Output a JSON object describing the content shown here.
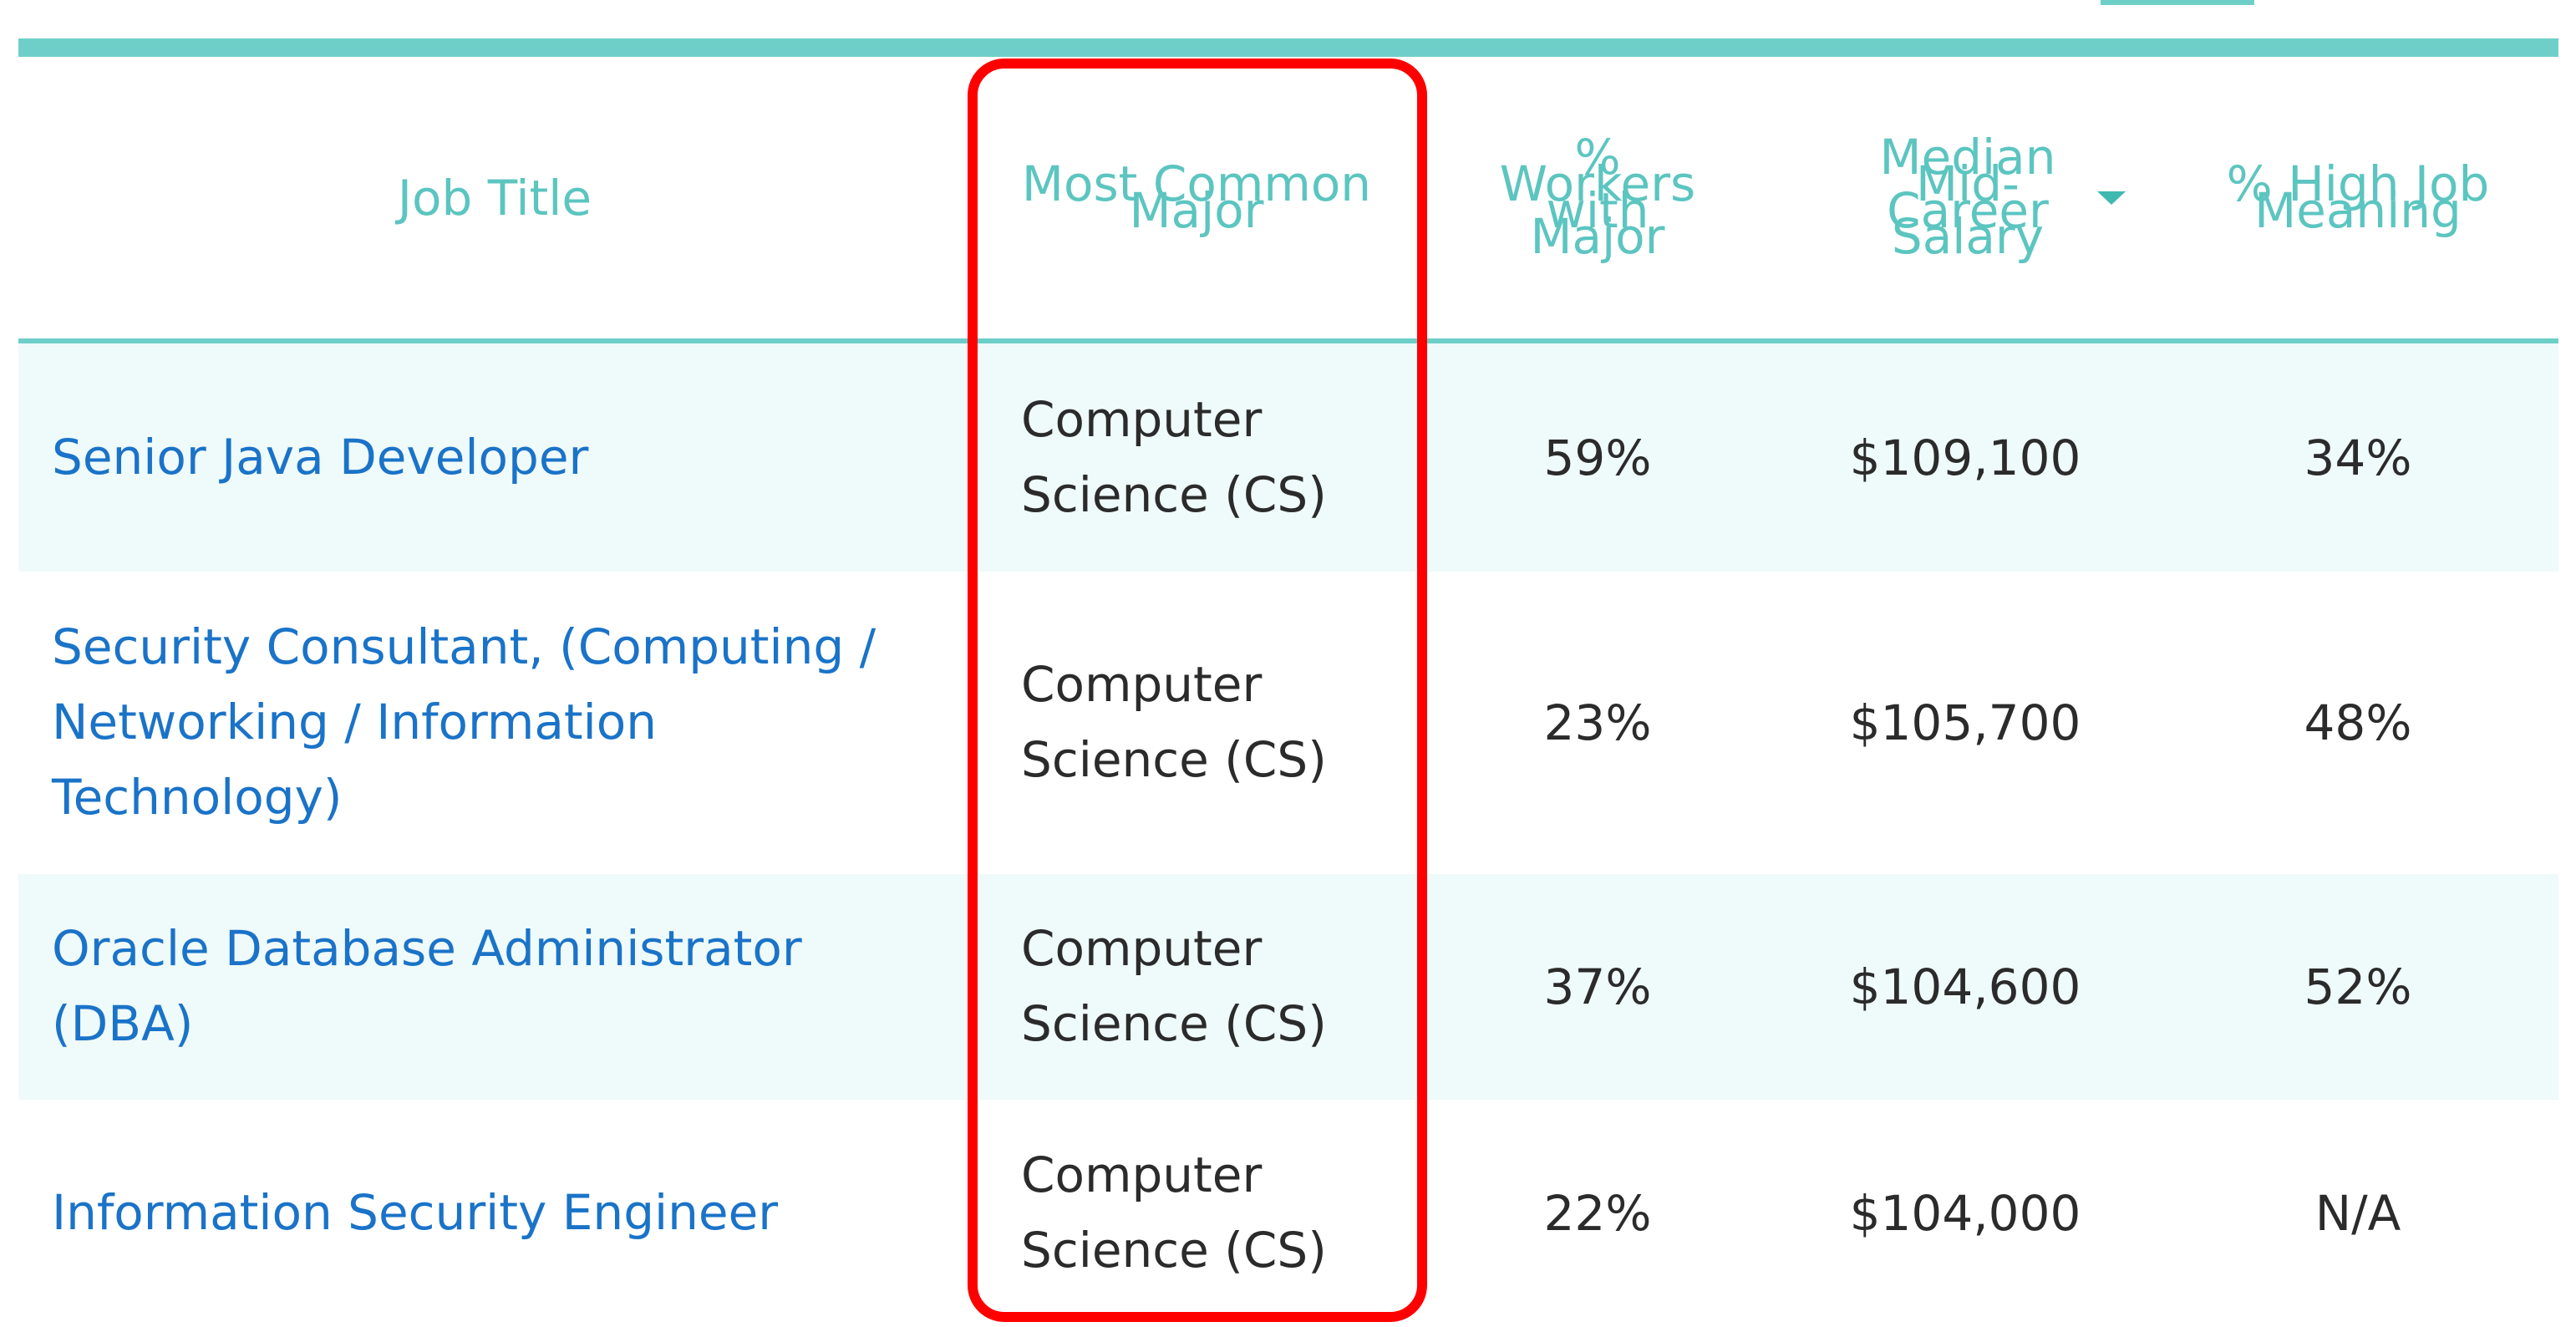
{
  "table": {
    "columns": [
      {
        "label": "Job Title"
      },
      {
        "label": "Most Common Major"
      },
      {
        "label": "% Workers with Major"
      },
      {
        "label": "Median Mid-Career Salary",
        "sorted": "descending"
      },
      {
        "label": "% High Job Meaning"
      }
    ],
    "rows": [
      {
        "job": "Senior Java Developer",
        "major": "Computer Science (CS)",
        "pct_major": "59%",
        "salary": "$109,100",
        "meaning": "34%"
      },
      {
        "job": "Security Consultant, (Computing / Networking / Information Technology)",
        "major": "Computer Science (CS)",
        "pct_major": "23%",
        "salary": "$105,700",
        "meaning": "48%"
      },
      {
        "job": "Oracle Database Administrator (DBA)",
        "major": "Computer Science (CS)",
        "pct_major": "37%",
        "salary": "$104,600",
        "meaning": "52%"
      },
      {
        "job": "Information Security Engineer",
        "major": "Computer Science (CS)",
        "pct_major": "22%",
        "salary": "$104,000",
        "meaning": "N/A"
      }
    ]
  },
  "colors": {
    "header_text": "#5cc5c0",
    "accent_bar": "#6ecfc9",
    "link": "#1a73c8",
    "row_shade": "#effafa",
    "highlight": "#ff0000"
  },
  "icons": {
    "sort": "caret-down-icon"
  }
}
